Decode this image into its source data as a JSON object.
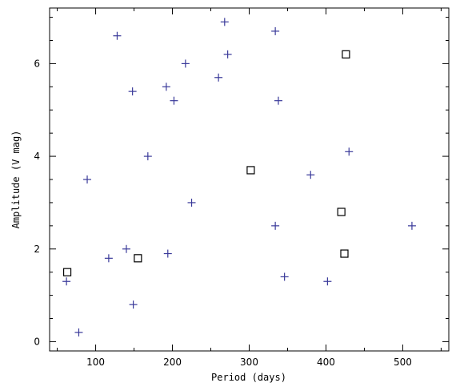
{
  "chart_data": {
    "type": "scatter",
    "xlabel": "Period (days)",
    "ylabel": "Amplitude (V mag)",
    "xlim": [
      40,
      560
    ],
    "ylim": [
      -0.2,
      7.2
    ],
    "xticks": [
      100,
      200,
      300,
      400,
      500
    ],
    "yticks": [
      0,
      2,
      4,
      6
    ],
    "grid": false,
    "colors": {
      "plus": "#3a3a9a",
      "square": "#000000"
    },
    "series": [
      {
        "marker": "plus",
        "points": [
          {
            "x": 62,
            "y": 1.3
          },
          {
            "x": 78,
            "y": 0.2
          },
          {
            "x": 89,
            "y": 3.5
          },
          {
            "x": 117,
            "y": 1.8
          },
          {
            "x": 128,
            "y": 6.6
          },
          {
            "x": 140,
            "y": 2.0
          },
          {
            "x": 148,
            "y": 5.4
          },
          {
            "x": 149,
            "y": 0.8
          },
          {
            "x": 168,
            "y": 4.0
          },
          {
            "x": 192,
            "y": 5.5
          },
          {
            "x": 194,
            "y": 1.9
          },
          {
            "x": 202,
            "y": 5.2
          },
          {
            "x": 217,
            "y": 6.0
          },
          {
            "x": 225,
            "y": 3.0
          },
          {
            "x": 260,
            "y": 5.7
          },
          {
            "x": 268,
            "y": 6.9
          },
          {
            "x": 272,
            "y": 6.2
          },
          {
            "x": 334,
            "y": 6.7
          },
          {
            "x": 334,
            "y": 2.5
          },
          {
            "x": 338,
            "y": 5.2
          },
          {
            "x": 346,
            "y": 1.4
          },
          {
            "x": 380,
            "y": 3.6
          },
          {
            "x": 402,
            "y": 1.3
          },
          {
            "x": 430,
            "y": 4.1
          },
          {
            "x": 512,
            "y": 2.5
          }
        ]
      },
      {
        "marker": "square",
        "points": [
          {
            "x": 63,
            "y": 1.5
          },
          {
            "x": 155,
            "y": 1.8
          },
          {
            "x": 302,
            "y": 3.7
          },
          {
            "x": 420,
            "y": 2.8
          },
          {
            "x": 424,
            "y": 1.9
          },
          {
            "x": 426,
            "y": 6.2
          }
        ]
      }
    ]
  }
}
